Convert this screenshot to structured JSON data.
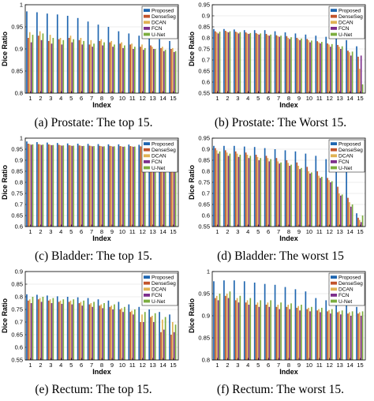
{
  "colors": {
    "Proposed": "#1f66b0",
    "DenseSeg": "#c2542b",
    "DCAN": "#e0b253",
    "FCN": "#7d2f8c",
    "U-Net": "#7cae3f"
  },
  "chart_data": [
    {
      "type": "bar",
      "caption": "(a) Prostate: The top 15.",
      "xlabel": "Index",
      "ylabel": "Dice Ratio",
      "ylim": [
        0.8,
        1.0
      ],
      "yticks": [
        "0.8",
        "0.85",
        "0.9",
        "0.95",
        "1"
      ],
      "legend_position": "top-right",
      "categories": [
        "1",
        "2",
        "3",
        "4",
        "5",
        "6",
        "7",
        "8",
        "9",
        "10",
        "11",
        "12",
        "13",
        "14",
        "15"
      ],
      "series": [
        {
          "name": "Proposed",
          "values": [
            0.985,
            0.983,
            0.98,
            0.978,
            0.975,
            0.97,
            0.962,
            0.955,
            0.95,
            0.94,
            0.935,
            0.93,
            0.926,
            0.922,
            0.918
          ]
        },
        {
          "name": "DenseSeg",
          "values": [
            0.925,
            0.93,
            0.918,
            0.922,
            0.925,
            0.92,
            0.91,
            0.918,
            0.915,
            0.912,
            0.91,
            0.905,
            0.908,
            0.902,
            0.9
          ]
        },
        {
          "name": "DCAN",
          "values": [
            0.938,
            0.94,
            0.932,
            0.925,
            0.93,
            0.925,
            0.92,
            0.922,
            0.918,
            0.915,
            0.912,
            0.91,
            0.905,
            0.905,
            0.902
          ]
        },
        {
          "name": "FCN",
          "values": [
            0.915,
            0.92,
            0.912,
            0.91,
            0.915,
            0.91,
            0.905,
            0.908,
            0.905,
            0.902,
            0.9,
            0.898,
            0.9,
            0.895,
            0.893
          ]
        },
        {
          "name": "U-Net",
          "values": [
            0.932,
            0.935,
            0.925,
            0.92,
            0.922,
            0.918,
            0.912,
            0.915,
            0.91,
            0.908,
            0.905,
            0.902,
            0.9,
            0.898,
            0.895
          ]
        }
      ]
    },
    {
      "type": "bar",
      "caption": "(b) Prostate: The Worst 15.",
      "xlabel": "Index",
      "ylabel": "Dice Ratio",
      "ylim": [
        0.55,
        0.95
      ],
      "yticks": [
        "0.55",
        "0.6",
        "0.65",
        "0.7",
        "0.75",
        "0.8",
        "0.85",
        "0.9",
        "0.95"
      ],
      "legend_position": "top-right",
      "categories": [
        "1",
        "2",
        "3",
        "4",
        "5",
        "6",
        "7",
        "8",
        "9",
        "10",
        "11",
        "12",
        "13",
        "14",
        "15"
      ],
      "series": [
        {
          "name": "Proposed",
          "values": [
            0.84,
            0.84,
            0.838,
            0.835,
            0.835,
            0.835,
            0.83,
            0.825,
            0.82,
            0.815,
            0.81,
            0.805,
            0.8,
            0.79,
            0.762
          ]
        },
        {
          "name": "DenseSeg",
          "values": [
            0.83,
            0.832,
            0.828,
            0.825,
            0.822,
            0.818,
            0.812,
            0.808,
            0.8,
            0.795,
            0.785,
            0.775,
            0.768,
            0.742,
            0.715
          ]
        },
        {
          "name": "DCAN",
          "values": [
            0.825,
            0.828,
            0.825,
            0.82,
            0.818,
            0.812,
            0.808,
            0.8,
            0.795,
            0.79,
            0.78,
            0.77,
            0.76,
            0.735,
            0.66
          ]
        },
        {
          "name": "FCN",
          "values": [
            0.82,
            0.825,
            0.82,
            0.818,
            0.815,
            0.81,
            0.805,
            0.795,
            0.79,
            0.78,
            0.775,
            0.76,
            0.75,
            0.72,
            0.72
          ]
        },
        {
          "name": "U-Net",
          "values": [
            0.828,
            0.83,
            0.826,
            0.822,
            0.82,
            0.815,
            0.81,
            0.803,
            0.797,
            0.788,
            0.782,
            0.772,
            0.762,
            0.738,
            0.59
          ]
        }
      ]
    },
    {
      "type": "bar",
      "caption": "(c) Bladder: The top 15.",
      "xlabel": "Index",
      "ylabel": "Dice Ratio",
      "ylim": [
        0.6,
        1.0
      ],
      "yticks": [
        "0.6",
        "0.65",
        "0.7",
        "0.75",
        "0.8",
        "0.85",
        "0.9",
        "0.95",
        "1"
      ],
      "legend_position": "top-right",
      "categories": [
        "1",
        "2",
        "3",
        "4",
        "5",
        "6",
        "7",
        "8",
        "9",
        "10",
        "11",
        "12",
        "13",
        "14",
        "15"
      ],
      "series": [
        {
          "name": "Proposed",
          "values": [
            0.985,
            0.982,
            0.98,
            0.978,
            0.976,
            0.975,
            0.974,
            0.973,
            0.972,
            0.972,
            0.971,
            0.97,
            0.97,
            0.969,
            0.969
          ]
        },
        {
          "name": "DenseSeg",
          "values": [
            0.975,
            0.973,
            0.972,
            0.97,
            0.968,
            0.967,
            0.966,
            0.965,
            0.965,
            0.964,
            0.964,
            0.963,
            0.963,
            0.962,
            0.962
          ]
        },
        {
          "name": "DCAN",
          "values": [
            0.973,
            0.972,
            0.97,
            0.968,
            0.967,
            0.966,
            0.965,
            0.964,
            0.964,
            0.963,
            0.963,
            0.962,
            0.962,
            0.961,
            0.961
          ]
        },
        {
          "name": "FCN",
          "values": [
            0.97,
            0.969,
            0.968,
            0.966,
            0.965,
            0.964,
            0.963,
            0.962,
            0.962,
            0.961,
            0.961,
            0.96,
            0.96,
            0.959,
            0.959
          ]
        },
        {
          "name": "U-Net",
          "values": [
            0.972,
            0.971,
            0.969,
            0.967,
            0.966,
            0.965,
            0.964,
            0.963,
            0.963,
            0.962,
            0.962,
            0.961,
            0.961,
            0.96,
            0.96
          ]
        }
      ]
    },
    {
      "type": "bar",
      "caption": "(d) Bladder: The worst 15",
      "xlabel": "Index",
      "ylabel": "Dice Ratio",
      "ylim": [
        0.55,
        0.95
      ],
      "yticks": [
        "0.55",
        "0.6",
        "0.65",
        "0.7",
        "0.75",
        "0.8",
        "0.85",
        "0.9",
        "0.95"
      ],
      "legend_position": "top-right",
      "categories": [
        "1",
        "2",
        "3",
        "4",
        "5",
        "6",
        "7",
        "8",
        "9",
        "10",
        "11",
        "12",
        "13",
        "14",
        "15"
      ],
      "series": [
        {
          "name": "Proposed",
          "values": [
            0.915,
            0.915,
            0.915,
            0.912,
            0.91,
            0.905,
            0.9,
            0.895,
            0.89,
            0.88,
            0.87,
            0.855,
            0.84,
            0.82,
            0.61
          ]
        },
        {
          "name": "DenseSeg",
          "values": [
            0.905,
            0.895,
            0.89,
            0.885,
            0.875,
            0.87,
            0.86,
            0.85,
            0.84,
            0.82,
            0.8,
            0.77,
            0.73,
            0.68,
            0.59
          ]
        },
        {
          "name": "DCAN",
          "values": [
            0.895,
            0.885,
            0.88,
            0.875,
            0.865,
            0.86,
            0.845,
            0.838,
            0.825,
            0.8,
            0.78,
            0.76,
            0.7,
            0.66,
            0.58
          ]
        },
        {
          "name": "FCN",
          "values": [
            0.88,
            0.87,
            0.865,
            0.86,
            0.85,
            0.845,
            0.835,
            0.825,
            0.81,
            0.79,
            0.77,
            0.75,
            0.69,
            0.64,
            0.57
          ]
        },
        {
          "name": "U-Net",
          "values": [
            0.89,
            0.88,
            0.875,
            0.87,
            0.86,
            0.855,
            0.84,
            0.83,
            0.815,
            0.795,
            0.775,
            0.755,
            0.695,
            0.65,
            0.6
          ]
        }
      ]
    },
    {
      "type": "bar",
      "caption": "(e) Rectum: The top 15.",
      "xlabel": "Index",
      "ylabel": "Dice Ratio",
      "ylim": [
        0.55,
        0.9
      ],
      "yticks": [
        "0.55",
        "0.6",
        "0.65",
        "0.7",
        "0.75",
        "0.8",
        "0.85",
        "0.9"
      ],
      "legend_position": "top-right",
      "categories": [
        "1",
        "2",
        "3",
        "4",
        "5",
        "6",
        "7",
        "8",
        "9",
        "10",
        "11",
        "12",
        "13",
        "14",
        "15"
      ],
      "series": [
        {
          "name": "Proposed",
          "values": [
            0.81,
            0.808,
            0.805,
            0.802,
            0.8,
            0.798,
            0.795,
            0.79,
            0.785,
            0.78,
            0.77,
            0.76,
            0.75,
            0.74,
            0.73
          ]
        },
        {
          "name": "DenseSeg",
          "values": [
            0.785,
            0.79,
            0.785,
            0.78,
            0.78,
            0.775,
            0.77,
            0.765,
            0.76,
            0.75,
            0.74,
            0.7,
            0.72,
            0.66,
            0.65
          ]
        },
        {
          "name": "DCAN",
          "values": [
            0.79,
            0.795,
            0.79,
            0.785,
            0.785,
            0.78,
            0.775,
            0.77,
            0.765,
            0.755,
            0.745,
            0.73,
            0.725,
            0.71,
            0.7
          ]
        },
        {
          "name": "FCN",
          "values": [
            0.775,
            0.78,
            0.775,
            0.772,
            0.77,
            0.765,
            0.76,
            0.755,
            0.75,
            0.74,
            0.73,
            0.7,
            0.7,
            0.67,
            0.66
          ]
        },
        {
          "name": "U-Net",
          "values": [
            0.8,
            0.8,
            0.795,
            0.79,
            0.79,
            0.785,
            0.78,
            0.775,
            0.77,
            0.76,
            0.75,
            0.74,
            0.735,
            0.72,
            0.69
          ]
        }
      ]
    },
    {
      "type": "bar",
      "caption": "(f) Rectum: The worst 15.",
      "xlabel": "Index",
      "ylabel": "Dice Ratio",
      "ylim": [
        0.8,
        1.0
      ],
      "yticks": [
        "0.8",
        "0.85",
        "0.9",
        "0.95",
        "1"
      ],
      "legend_position": "top-right",
      "categories": [
        "1",
        "2",
        "3",
        "4",
        "5",
        "6",
        "7",
        "8",
        "9",
        "10",
        "11",
        "12",
        "13",
        "14",
        "15"
      ],
      "series": [
        {
          "name": "Proposed",
          "values": [
            0.978,
            0.98,
            0.98,
            0.978,
            0.975,
            0.972,
            0.97,
            0.965,
            0.96,
            0.955,
            0.94,
            0.935,
            0.93,
            0.925,
            0.92
          ]
        },
        {
          "name": "DenseSeg",
          "values": [
            0.94,
            0.945,
            0.935,
            0.93,
            0.925,
            0.925,
            0.92,
            0.92,
            0.918,
            0.915,
            0.912,
            0.91,
            0.908,
            0.905,
            0.905
          ]
        },
        {
          "name": "DCAN",
          "values": [
            0.945,
            0.95,
            0.94,
            0.935,
            0.93,
            0.93,
            0.925,
            0.925,
            0.922,
            0.918,
            0.915,
            0.913,
            0.91,
            0.908,
            0.908
          ]
        },
        {
          "name": "FCN",
          "values": [
            0.935,
            0.94,
            0.93,
            0.925,
            0.92,
            0.92,
            0.915,
            0.915,
            0.912,
            0.91,
            0.908,
            0.905,
            0.903,
            0.9,
            0.9
          ]
        },
        {
          "name": "U-Net",
          "values": [
            0.95,
            0.955,
            0.945,
            0.94,
            0.935,
            0.935,
            0.93,
            0.928,
            0.925,
            0.92,
            0.918,
            0.915,
            0.912,
            0.91,
            0.91
          ]
        }
      ]
    }
  ]
}
